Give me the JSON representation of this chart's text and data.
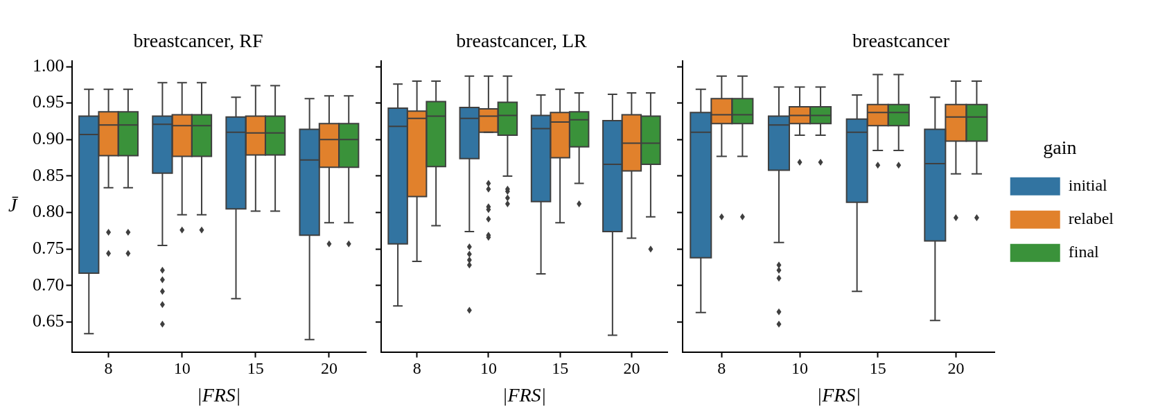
{
  "chart_data": [
    {
      "type": "box",
      "title": "breastcancer, RF",
      "xlabel": "|FRS|",
      "ylabel": "J̄",
      "categories": [
        "8",
        "10",
        "15",
        "20"
      ],
      "ylim": [
        0.609,
        1.008
      ],
      "yticks": [
        {
          "value": 0.65,
          "label": "0.65"
        },
        {
          "value": 0.7,
          "label": "0.70"
        },
        {
          "value": 0.75,
          "label": "0.75"
        },
        {
          "value": 0.8,
          "label": "0.80"
        },
        {
          "value": 0.85,
          "label": "0.85"
        },
        {
          "value": 0.9,
          "label": "0.90"
        },
        {
          "value": 0.95,
          "label": "0.95"
        },
        {
          "value": 1,
          "label": "1.00"
        }
      ],
      "legend": false,
      "series": [
        {
          "color": "#3274a1",
          "boxes": [
            {
              "low": 0.634,
              "q1": 0.717,
              "median": 0.907,
              "q3": 0.932,
              "high": 0.969
            },
            {
              "low": 0.755,
              "q1": 0.854,
              "median": 0.921,
              "q3": 0.932,
              "high": 0.978,
              "outliers": [
                0.721,
                0.708,
                0.692,
                0.674,
                0.647
              ]
            },
            {
              "low": 0.682,
              "q1": 0.805,
              "median": 0.91,
              "q3": 0.931,
              "high": 0.958
            },
            {
              "low": 0.626,
              "q1": 0.769,
              "median": 0.872,
              "q3": 0.914,
              "high": 0.956
            }
          ]
        },
        {
          "color": "#e1812c",
          "boxes": [
            {
              "low": 0.834,
              "q1": 0.878,
              "median": 0.92,
              "q3": 0.938,
              "high": 0.969,
              "outliers": [
                0.773,
                0.744
              ]
            },
            {
              "low": 0.797,
              "q1": 0.877,
              "median": 0.919,
              "q3": 0.934,
              "high": 0.978,
              "outliers": [
                0.776
              ]
            },
            {
              "low": 0.802,
              "q1": 0.879,
              "median": 0.909,
              "q3": 0.932,
              "high": 0.974
            },
            {
              "low": 0.786,
              "q1": 0.862,
              "median": 0.9,
              "q3": 0.922,
              "high": 0.96,
              "outliers": [
                0.757
              ]
            }
          ]
        },
        {
          "color": "#3a923a",
          "boxes": [
            {
              "low": 0.834,
              "q1": 0.878,
              "median": 0.92,
              "q3": 0.938,
              "high": 0.969,
              "outliers": [
                0.773,
                0.744
              ]
            },
            {
              "low": 0.797,
              "q1": 0.877,
              "median": 0.919,
              "q3": 0.934,
              "high": 0.978,
              "outliers": [
                0.776
              ]
            },
            {
              "low": 0.802,
              "q1": 0.879,
              "median": 0.909,
              "q3": 0.932,
              "high": 0.974
            },
            {
              "low": 0.786,
              "q1": 0.862,
              "median": 0.9,
              "q3": 0.922,
              "high": 0.96,
              "outliers": [
                0.757
              ]
            }
          ]
        }
      ]
    },
    {
      "type": "box",
      "title": "breastcancer, LR",
      "xlabel": "|FRS|",
      "categories": [
        "8",
        "10",
        "15",
        "20"
      ],
      "ylim": [
        0.609,
        1.008
      ],
      "yticks": [
        {
          "value": 0.65,
          "label": null
        },
        {
          "value": 0.7,
          "label": null
        },
        {
          "value": 0.75,
          "label": null
        },
        {
          "value": 0.8,
          "label": null
        },
        {
          "value": 0.85,
          "label": null
        },
        {
          "value": 0.9,
          "label": null
        },
        {
          "value": 0.95,
          "label": null
        },
        {
          "value": 1,
          "label": null
        }
      ],
      "tick_labels": "x",
      "legend": false,
      "series": [
        {
          "color": "#3274a1",
          "boxes": [
            {
              "low": 0.672,
              "q1": 0.757,
              "median": 0.918,
              "q3": 0.943,
              "high": 0.976
            },
            {
              "low": 0.774,
              "q1": 0.874,
              "median": 0.929,
              "q3": 0.944,
              "high": 0.987,
              "outliers": [
                0.753,
                0.743,
                0.735,
                0.728,
                0.666
              ]
            },
            {
              "low": 0.716,
              "q1": 0.815,
              "median": 0.915,
              "q3": 0.933,
              "high": 0.961
            },
            {
              "low": 0.632,
              "q1": 0.774,
              "median": 0.866,
              "q3": 0.926,
              "high": 0.962
            }
          ]
        },
        {
          "color": "#e1812c",
          "boxes": [
            {
              "low": 0.733,
              "q1": 0.822,
              "median": 0.929,
              "q3": 0.939,
              "high": 0.98
            },
            {
              "low": 0.91,
              "q1": 0.91,
              "median": 0.932,
              "q3": 0.942,
              "high": 0.987,
              "outliers": [
                0.84,
                0.832,
                0.808,
                0.804,
                0.791,
                0.769,
                0.766
              ]
            },
            {
              "low": 0.786,
              "q1": 0.875,
              "median": 0.924,
              "q3": 0.937,
              "high": 0.969
            },
            {
              "low": 0.765,
              "q1": 0.857,
              "median": 0.895,
              "q3": 0.934,
              "high": 0.964
            }
          ]
        },
        {
          "color": "#3a923a",
          "boxes": [
            {
              "low": 0.782,
              "q1": 0.863,
              "median": 0.932,
              "q3": 0.952,
              "high": 0.98
            },
            {
              "low": 0.85,
              "q1": 0.906,
              "median": 0.933,
              "q3": 0.951,
              "high": 0.987,
              "outliers": [
                0.832,
                0.829,
                0.82,
                0.812
              ]
            },
            {
              "low": 0.84,
              "q1": 0.89,
              "median": 0.927,
              "q3": 0.938,
              "high": 0.964,
              "outliers": [
                0.812
              ]
            },
            {
              "low": 0.794,
              "q1": 0.866,
              "median": 0.895,
              "q3": 0.932,
              "high": 0.964,
              "outliers": [
                0.75
              ]
            }
          ]
        }
      ]
    },
    {
      "type": "box",
      "title": "breastcancer",
      "xlabel": "|FRS|",
      "categories": [
        "8",
        "10",
        "15",
        "20"
      ],
      "ylim": [
        0.609,
        1.008
      ],
      "yticks": [
        {
          "value": 0.65,
          "label": null
        },
        {
          "value": 0.7,
          "label": null
        },
        {
          "value": 0.75,
          "label": null
        },
        {
          "value": 0.8,
          "label": null
        },
        {
          "value": 0.85,
          "label": null
        },
        {
          "value": 0.9,
          "label": null
        },
        {
          "value": 0.95,
          "label": null
        },
        {
          "value": 1,
          "label": null
        }
      ],
      "tick_labels": "x",
      "legend": "right",
      "legend_title": "gain",
      "series": [
        {
          "name": "initial",
          "color": "#3274a1",
          "boxes": [
            {
              "low": 0.663,
              "q1": 0.738,
              "median": 0.91,
              "q3": 0.937,
              "high": 0.969
            },
            {
              "low": 0.759,
              "q1": 0.858,
              "median": 0.92,
              "q3": 0.932,
              "high": 0.972,
              "outliers": [
                0.728,
                0.721,
                0.71,
                0.664,
                0.647
              ]
            },
            {
              "low": 0.692,
              "q1": 0.814,
              "median": 0.91,
              "q3": 0.928,
              "high": 0.961
            },
            {
              "low": 0.652,
              "q1": 0.761,
              "median": 0.867,
              "q3": 0.914,
              "high": 0.958
            }
          ]
        },
        {
          "name": "relabel",
          "color": "#e1812c",
          "boxes": [
            {
              "low": 0.877,
              "q1": 0.922,
              "median": 0.934,
              "q3": 0.956,
              "high": 0.987,
              "outliers": [
                0.794
              ]
            },
            {
              "low": 0.906,
              "q1": 0.922,
              "median": 0.933,
              "q3": 0.945,
              "high": 0.972,
              "outliers": [
                0.869
              ]
            },
            {
              "low": 0.885,
              "q1": 0.919,
              "median": 0.937,
              "q3": 0.948,
              "high": 0.989,
              "outliers": [
                0.865
              ]
            },
            {
              "low": 0.853,
              "q1": 0.898,
              "median": 0.931,
              "q3": 0.948,
              "high": 0.98,
              "outliers": [
                0.793
              ]
            }
          ]
        },
        {
          "name": "final",
          "color": "#3a923a",
          "boxes": [
            {
              "low": 0.877,
              "q1": 0.922,
              "median": 0.934,
              "q3": 0.956,
              "high": 0.987,
              "outliers": [
                0.794
              ]
            },
            {
              "low": 0.906,
              "q1": 0.922,
              "median": 0.933,
              "q3": 0.945,
              "high": 0.972,
              "outliers": [
                0.869
              ]
            },
            {
              "low": 0.885,
              "q1": 0.919,
              "median": 0.937,
              "q3": 0.948,
              "high": 0.989,
              "outliers": [
                0.865
              ]
            },
            {
              "low": 0.853,
              "q1": 0.898,
              "median": 0.931,
              "q3": 0.948,
              "high": 0.98,
              "outliers": [
                0.793
              ]
            }
          ]
        }
      ]
    }
  ]
}
